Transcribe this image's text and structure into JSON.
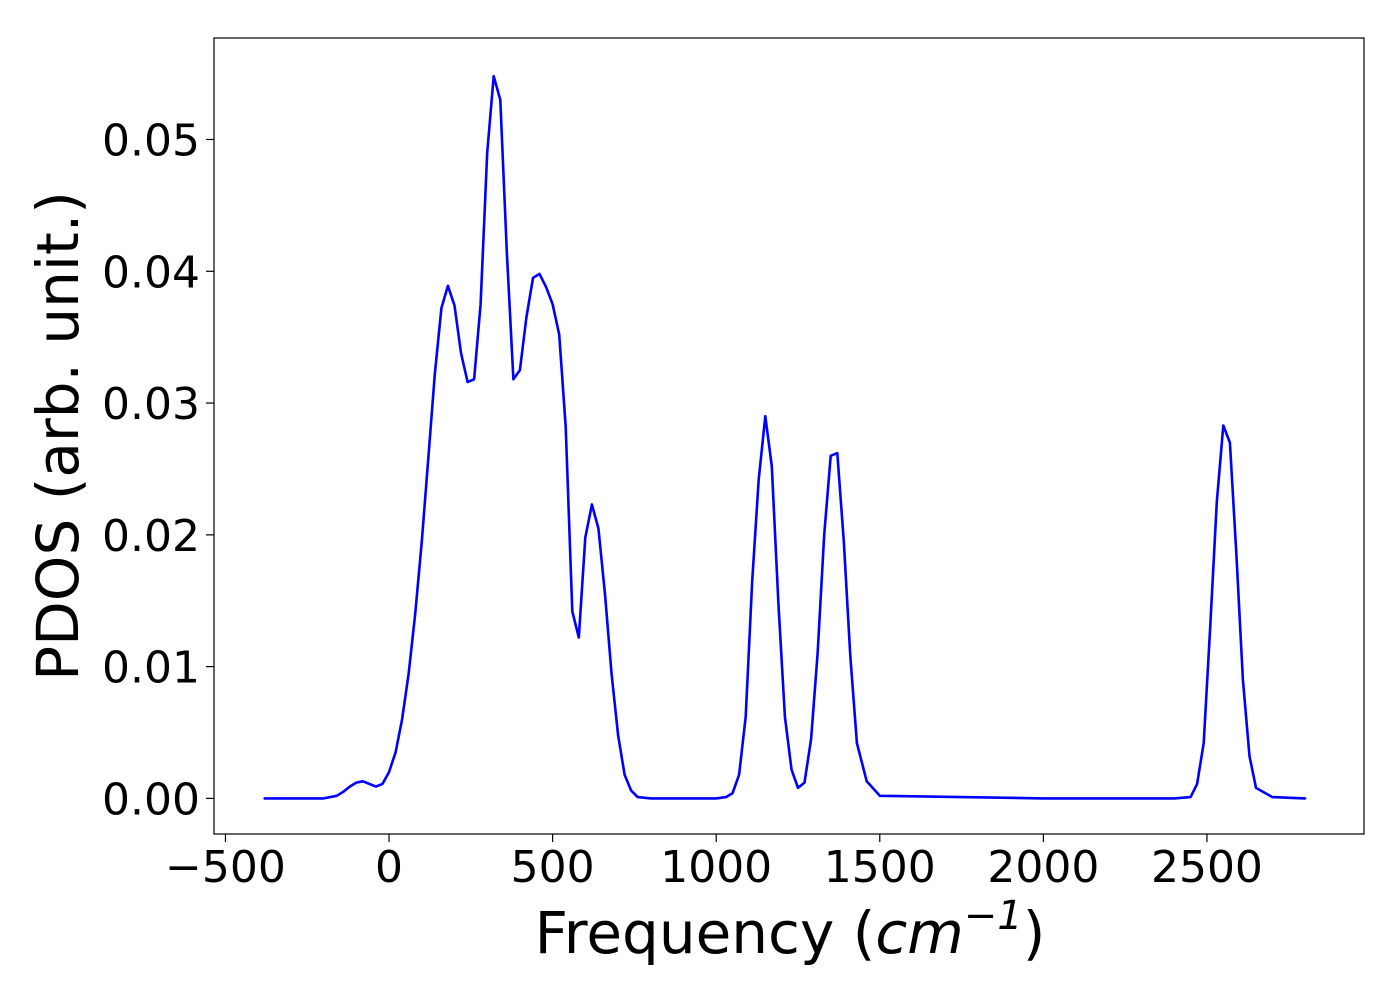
{
  "chart_data": {
    "type": "line",
    "title": "",
    "xlabel_prefix": "Frequency (",
    "xlabel_math_base": "cm",
    "xlabel_math_sup": "−1",
    "xlabel_suffix": ")",
    "ylabel": "PDOS (arb. unit.)",
    "xlim": [
      -535,
      2980
    ],
    "ylim": [
      -0.0027,
      0.0577
    ],
    "grid": false,
    "legend": "none",
    "line_color": "#0000ff",
    "x_ticks": [
      -500,
      0,
      500,
      1000,
      1500,
      2000,
      2500
    ],
    "x_tick_labels": [
      "−500",
      "0",
      "500",
      "1000",
      "1500",
      "2000",
      "2500"
    ],
    "y_ticks": [
      0.0,
      0.01,
      0.02,
      0.03,
      0.04,
      0.05
    ],
    "y_tick_labels": [
      "0.00",
      "0.01",
      "0.02",
      "0.03",
      "0.04",
      "0.05"
    ],
    "series": [
      {
        "x": [
          -380,
          -300,
          -200,
          -160,
          -140,
          -120,
          -100,
          -80,
          -60,
          -40,
          -20,
          0,
          20,
          40,
          60,
          80,
          100,
          120,
          140,
          160,
          180,
          200,
          220,
          240,
          260,
          280,
          300,
          320,
          340,
          360,
          380,
          400,
          420,
          440,
          460,
          480,
          500,
          520,
          540,
          560,
          580,
          600,
          620,
          640,
          660,
          680,
          700,
          720,
          740,
          760,
          800,
          900,
          1000,
          1030,
          1050,
          1070,
          1090,
          1110,
          1130,
          1150,
          1170,
          1190,
          1210,
          1230,
          1250,
          1270,
          1290,
          1310,
          1330,
          1350,
          1370,
          1390,
          1410,
          1430,
          1460,
          1500,
          2000,
          2400,
          2450,
          2470,
          2490,
          2510,
          2530,
          2550,
          2570,
          2590,
          2610,
          2630,
          2650,
          2700,
          2800
        ],
        "y": [
          0.0,
          0.0,
          0.0,
          0.0002,
          0.0005,
          0.0009,
          0.0012,
          0.0013,
          0.0011,
          0.0009,
          0.0011,
          0.002,
          0.0035,
          0.006,
          0.0095,
          0.014,
          0.0195,
          0.0258,
          0.0322,
          0.0372,
          0.0389,
          0.0374,
          0.0338,
          0.0316,
          0.0318,
          0.0375,
          0.049,
          0.0548,
          0.053,
          0.0415,
          0.0318,
          0.0325,
          0.0365,
          0.0395,
          0.0398,
          0.0388,
          0.0375,
          0.0352,
          0.0282,
          0.0142,
          0.0122,
          0.0198,
          0.0223,
          0.0205,
          0.0155,
          0.0095,
          0.0048,
          0.0018,
          0.0006,
          0.0001,
          0.0,
          0.0,
          0.0,
          0.0001,
          0.0004,
          0.0018,
          0.0062,
          0.0165,
          0.0242,
          0.029,
          0.0252,
          0.0148,
          0.0062,
          0.0022,
          0.0008,
          0.0012,
          0.0045,
          0.011,
          0.02,
          0.026,
          0.0262,
          0.0195,
          0.0108,
          0.0042,
          0.0013,
          0.0002,
          0.0,
          0.0,
          0.0001,
          0.0011,
          0.0042,
          0.013,
          0.0225,
          0.0283,
          0.027,
          0.0185,
          0.009,
          0.0032,
          0.0008,
          0.0001,
          0.0
        ]
      }
    ]
  }
}
